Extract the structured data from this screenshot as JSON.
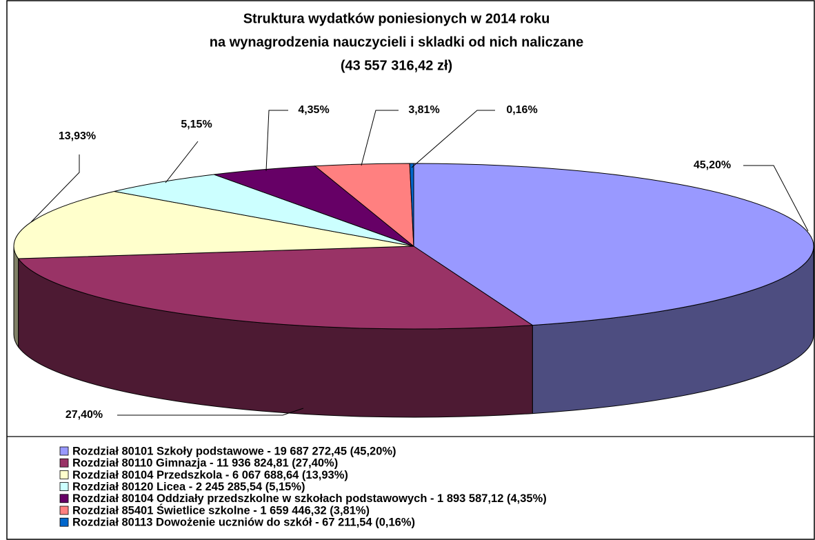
{
  "chart_data": {
    "type": "pie3d",
    "title": [
      "Struktura wydatków poniesionych w 2014 roku",
      "na wynagrodzenia nauczycieli i skladki od nich naliczane",
      "(43 557 316,42 zł)"
    ],
    "categories": [
      "Rozdział 80101 Szkoły podstawowe  - 19 687 272,45 (45,20%)",
      "Rozdział 80110 Gimnazja - 11 936 824,81 (27,40%)",
      "Rozdział 80104 Przedszkola - 6 067 688,64 (13,93%)",
      "Rozdział 80120 Licea - 2 245 285,54 (5,15%)",
      "Rozdział 80104 Oddziały przedszkolne w szkołach podstawowych - 1 893 587,12 (4,35%)",
      "Rozdział 85401 Świetlice szkolne - 1 659 446,32 (3,81%)",
      "Rozdział 80113 Dowożenie uczniów do szkół - 67 211,54 (0,16%)"
    ],
    "values": [
      45.2,
      27.4,
      13.93,
      5.15,
      4.35,
      3.81,
      0.16
    ],
    "value_labels": [
      "45,20%",
      "27,40%",
      "13,93%",
      "5,15%",
      "4,35%",
      "3,81%",
      "0,16%"
    ],
    "colors": [
      "#9999ff",
      "#993366",
      "#ffffcc",
      "#ccffff",
      "#660066",
      "#ff8080",
      "#0066cc"
    ]
  }
}
